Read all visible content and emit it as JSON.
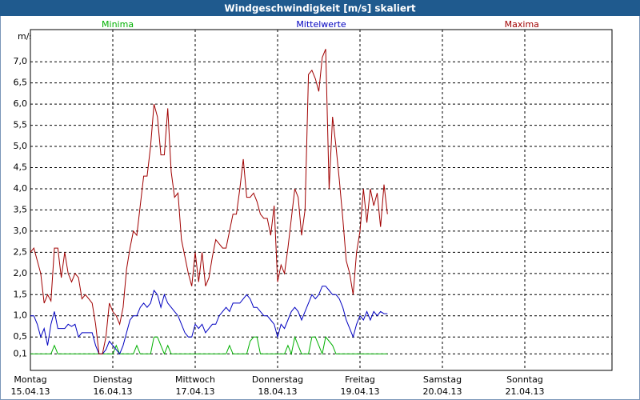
{
  "chart_data": {
    "type": "line",
    "title": "Windgeschwindigkeit [m/s] skaliert",
    "y_label": "m/s",
    "x": [
      0,
      1,
      2,
      3,
      4,
      5,
      6,
      7,
      8,
      9,
      10,
      11,
      12,
      13,
      14,
      15,
      16,
      17,
      18,
      19,
      20,
      21,
      22,
      23,
      24,
      25,
      26,
      27,
      28,
      29,
      30,
      31,
      32,
      33,
      34,
      35,
      36,
      37,
      38,
      39,
      40,
      41,
      42,
      43,
      44,
      45,
      46,
      47,
      48,
      49,
      50,
      51,
      52,
      53,
      54,
      55,
      56,
      57,
      58,
      59,
      60,
      61,
      62,
      63,
      64,
      65,
      66,
      67,
      68,
      69,
      70,
      71,
      72,
      73,
      74,
      75,
      76,
      77,
      78,
      79,
      80,
      81,
      82,
      83,
      84,
      85,
      86,
      87,
      88,
      89,
      90,
      91,
      92,
      93,
      94,
      95,
      96,
      97,
      98,
      99,
      100,
      101,
      102,
      103,
      104
    ],
    "xlim": [
      0,
      169.4
    ],
    "xticks": [
      {
        "value": 0,
        "label": "Montag"
      },
      {
        "value": 24,
        "label": "Dienstag"
      },
      {
        "value": 48,
        "label": "Mittwoch"
      },
      {
        "value": 72,
        "label": "Donnerstag"
      },
      {
        "value": 96,
        "label": "Freitag"
      },
      {
        "value": 120,
        "label": "Samstag"
      },
      {
        "value": 144,
        "label": "Sonntag"
      }
    ],
    "xtick_dates": [
      "15.04.13",
      "16.04.13",
      "17.04.13",
      "18.04.13",
      "19.04.13",
      "20.04.13",
      "21.04.13"
    ],
    "ylim": [
      -0.29,
      7.76
    ],
    "yticks": [
      {
        "value": 0.1,
        "label": "0,1"
      },
      {
        "value": 0.5,
        "label": "0,5"
      },
      {
        "value": 1,
        "label": "1,0"
      },
      {
        "value": 1.5,
        "label": "1,5"
      },
      {
        "value": 2,
        "label": "2,0"
      },
      {
        "value": 2.5,
        "label": "2,5"
      },
      {
        "value": 3,
        "label": "3,0"
      },
      {
        "value": 3.5,
        "label": "3,5"
      },
      {
        "value": 4,
        "label": "4,0"
      },
      {
        "value": 4.5,
        "label": "4,5"
      },
      {
        "value": 5,
        "label": "5,0"
      },
      {
        "value": 5.5,
        "label": "5,5"
      },
      {
        "value": 6,
        "label": "6,0"
      },
      {
        "value": 6.5,
        "label": "6,5"
      },
      {
        "value": 7,
        "label": "7,0"
      }
    ],
    "grid": true,
    "series": [
      {
        "name": "Minima",
        "color": "#00b000",
        "values": [
          0.1,
          0.1,
          0.1,
          0.1,
          0.1,
          0.1,
          0.1,
          0.3,
          0.1,
          0.1,
          0.1,
          0.1,
          0.1,
          0.1,
          0.1,
          0.1,
          0.1,
          0.1,
          0.1,
          0.1,
          0.1,
          0.1,
          0.1,
          0.1,
          0.1,
          0.3,
          0.1,
          0.1,
          0.1,
          0.1,
          0.1,
          0.3,
          0.1,
          0.1,
          0.1,
          0.1,
          0.5,
          0.5,
          0.3,
          0.1,
          0.3,
          0.1,
          0.1,
          0.1,
          0.1,
          0.1,
          0.1,
          0.1,
          0.1,
          0.1,
          0.1,
          0.1,
          0.1,
          0.1,
          0.1,
          0.1,
          0.1,
          0.1,
          0.3,
          0.1,
          0.1,
          0.1,
          0.1,
          0.1,
          0.4,
          0.5,
          0.5,
          0.1,
          0.1,
          0.1,
          0.1,
          0.1,
          0.1,
          0.1,
          0.1,
          0.3,
          0.1,
          0.5,
          0.3,
          0.1,
          0.1,
          0.1,
          0.5,
          0.5,
          0.3,
          0.1,
          0.5,
          0.4,
          0.3,
          0.1,
          0.1,
          0.1,
          0.1,
          0.1,
          0.1,
          0.1,
          0.1,
          0.1,
          0.1,
          0.1,
          0.1,
          0.1,
          0.1,
          0.1,
          0.1
        ]
      },
      {
        "name": "Mittelwerte",
        "color": "#0000c0",
        "values": [
          1.0,
          1.0,
          0.8,
          0.5,
          0.7,
          0.3,
          0.8,
          1.1,
          0.7,
          0.7,
          0.7,
          0.8,
          0.75,
          0.8,
          0.5,
          0.6,
          0.6,
          0.6,
          0.6,
          0.3,
          0.1,
          0.1,
          0.2,
          0.4,
          0.3,
          0.2,
          0.1,
          0.3,
          0.6,
          0.9,
          1.0,
          1.0,
          1.2,
          1.3,
          1.2,
          1.3,
          1.6,
          1.5,
          1.2,
          1.5,
          1.3,
          1.2,
          1.1,
          1.0,
          0.8,
          0.6,
          0.5,
          0.5,
          0.8,
          0.7,
          0.8,
          0.6,
          0.7,
          0.8,
          0.8,
          1.0,
          1.1,
          1.2,
          1.1,
          1.3,
          1.3,
          1.3,
          1.4,
          1.5,
          1.4,
          1.2,
          1.2,
          1.1,
          1.0,
          1.0,
          0.9,
          0.8,
          0.5,
          0.8,
          0.7,
          0.9,
          1.1,
          1.2,
          1.1,
          0.9,
          1.1,
          1.3,
          1.5,
          1.4,
          1.5,
          1.7,
          1.7,
          1.6,
          1.5,
          1.5,
          1.4,
          1.2,
          0.9,
          0.7,
          0.5,
          0.8,
          1.0,
          0.9,
          1.1,
          0.9,
          1.1,
          1.0,
          1.1,
          1.05,
          1.05
        ]
      },
      {
        "name": "Maxima",
        "color": "#a00000",
        "values": [
          2.5,
          2.6,
          2.3,
          2.0,
          1.3,
          1.5,
          1.35,
          2.6,
          2.6,
          1.9,
          2.5,
          2.0,
          1.8,
          2.0,
          1.9,
          1.4,
          1.5,
          1.4,
          1.3,
          0.8,
          0.1,
          0.1,
          0.5,
          1.3,
          1.1,
          1.0,
          0.8,
          1.2,
          2.1,
          2.6,
          3.0,
          2.9,
          3.6,
          4.3,
          4.3,
          5.0,
          6.0,
          5.7,
          4.8,
          4.8,
          5.9,
          4.4,
          3.8,
          3.9,
          2.8,
          2.4,
          2.0,
          1.7,
          2.5,
          1.8,
          2.5,
          1.7,
          1.9,
          2.4,
          2.8,
          2.7,
          2.6,
          2.6,
          3.0,
          3.4,
          3.4,
          4.0,
          4.7,
          3.8,
          3.8,
          3.9,
          3.7,
          3.4,
          3.3,
          3.3,
          2.9,
          3.6,
          1.8,
          2.2,
          2.0,
          2.6,
          3.3,
          4.0,
          3.8,
          2.9,
          3.5,
          6.7,
          6.8,
          6.6,
          6.3,
          7.1,
          7.3,
          4.0,
          5.7,
          5.0,
          4.2,
          3.3,
          2.3,
          2.0,
          1.5,
          2.5,
          3.0,
          4.0,
          3.2,
          4.0,
          3.6,
          3.9,
          3.1,
          4.1,
          3.4
        ]
      }
    ]
  }
}
